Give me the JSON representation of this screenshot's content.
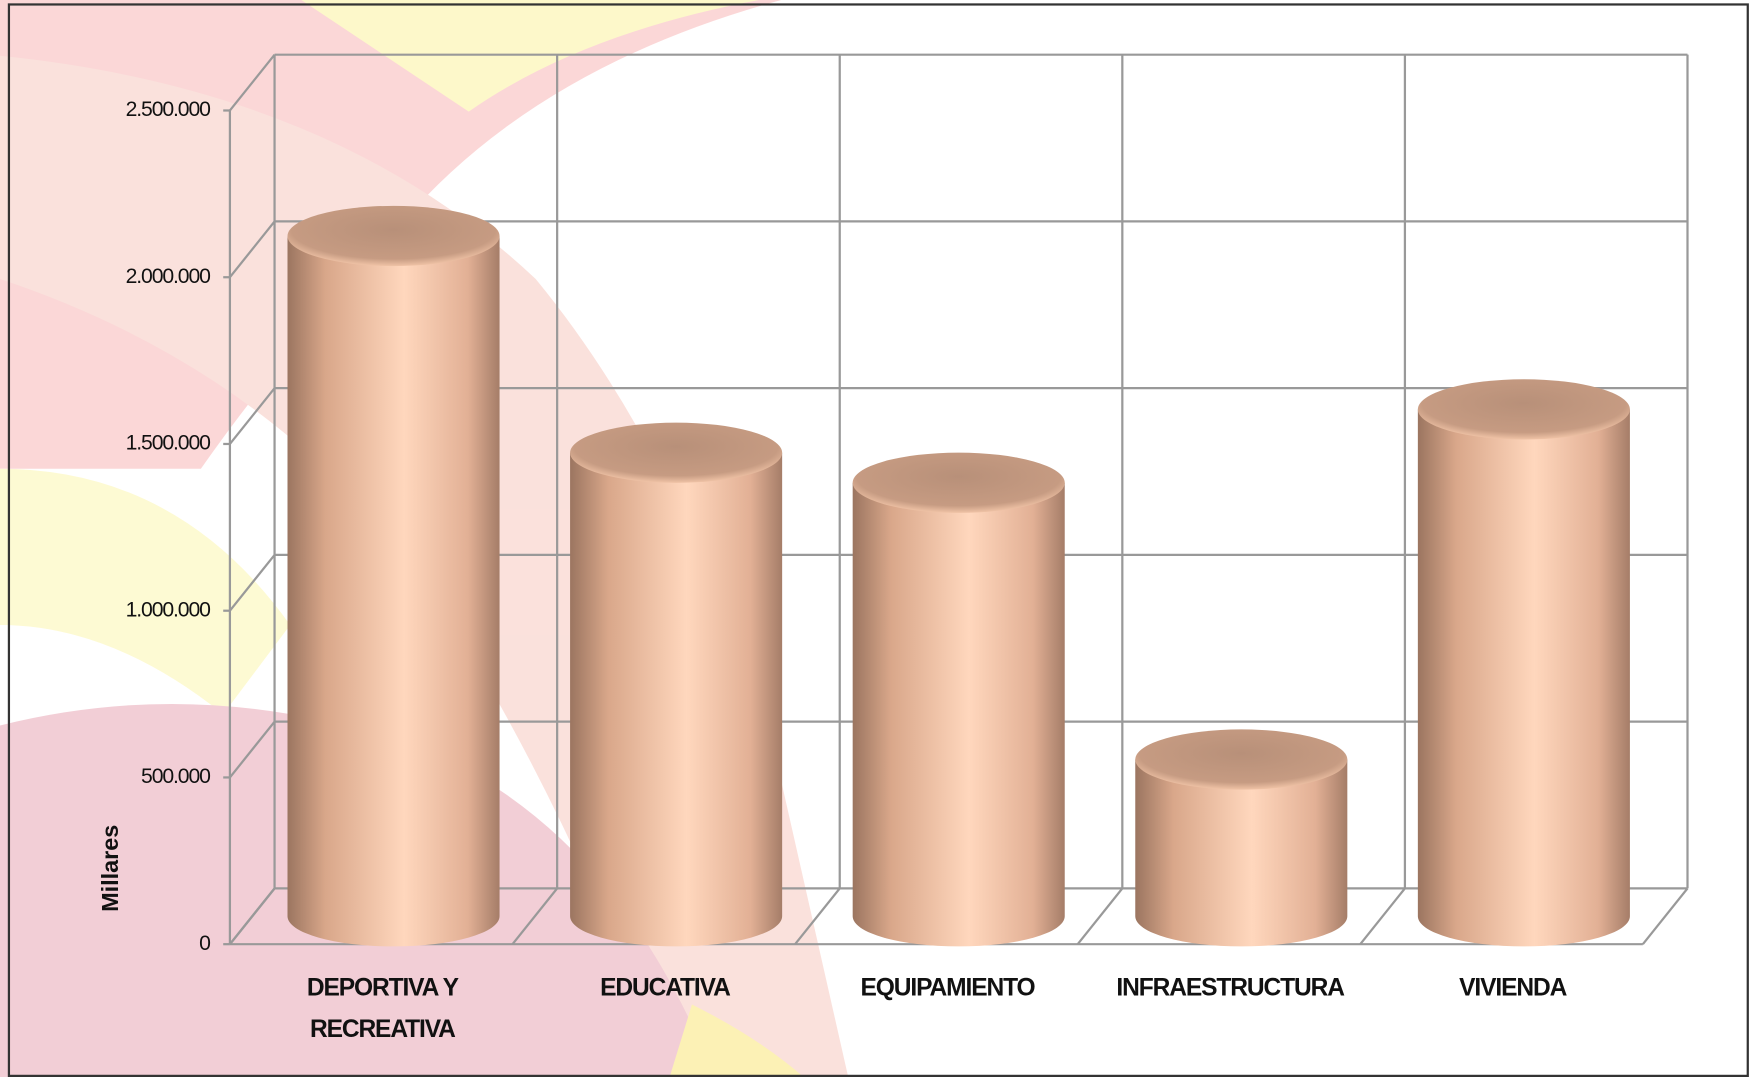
{
  "chart_data": {
    "type": "cylinder-bar",
    "y_axis_label": "Millares",
    "categories": [
      "DEPORTIVA Y RECREATIVA",
      "EDUCATIVA",
      "EQUIPAMIENTO",
      "INFRAESTRUCTURA",
      "VIVIENDA"
    ],
    "values": [
      2040000,
      1390000,
      1300000,
      470000,
      1520000
    ],
    "color": "#f6c2a2",
    "ylim": [
      0,
      2500000
    ],
    "yticks": [
      0,
      {
        "value": 500000,
        "label": "500.000"
      },
      {
        "value": 1000000,
        "label": "1.000.000"
      },
      {
        "value": 1500000,
        "label": "1.500.000"
      },
      {
        "value": 2000000,
        "label": "2.000.000"
      },
      {
        "value": 2500000,
        "label": "2.500.000"
      }
    ],
    "grid": true
  }
}
